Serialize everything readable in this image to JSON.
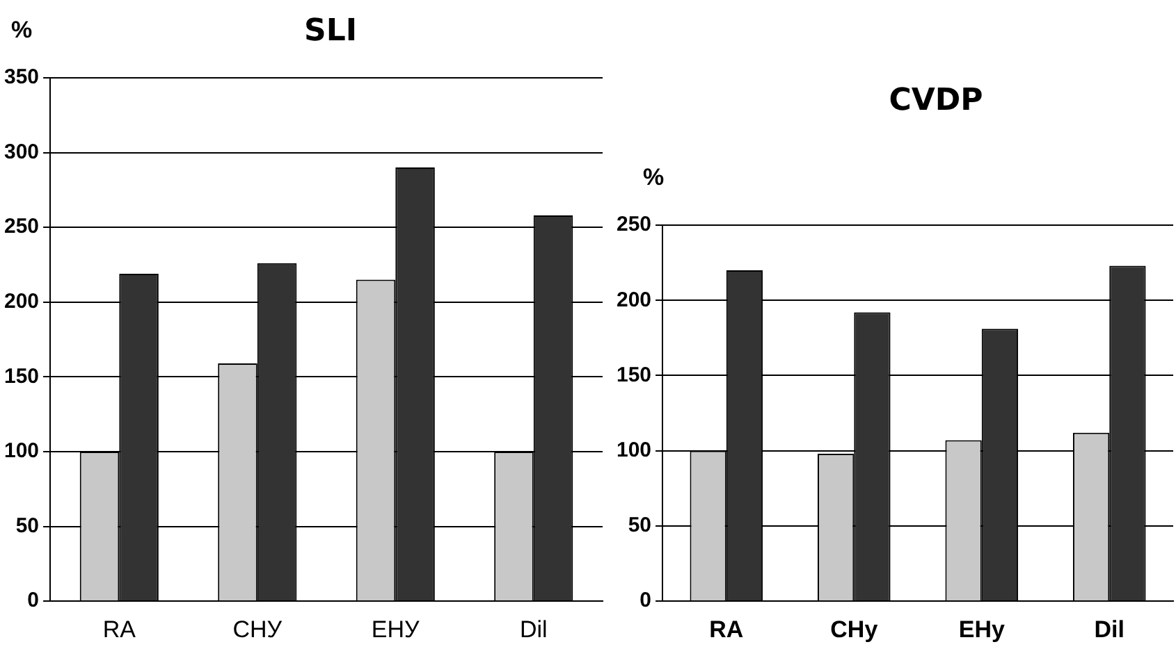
{
  "chart_data": [
    {
      "type": "bar",
      "title": "SLI",
      "ylabel": "%",
      "categories": [
        "RA",
        "CHУ",
        "EHУ",
        "Dil"
      ],
      "series": [
        {
          "color": "#c8c8c8",
          "values": [
            100,
            159,
            215,
            100
          ]
        },
        {
          "color": "#333333",
          "values": [
            219,
            226,
            290,
            258
          ]
        }
      ],
      "ylim": [
        0,
        350
      ],
      "yticks": [
        0,
        50,
        100,
        150,
        200,
        250,
        300,
        350
      ],
      "grid": "y",
      "legend": false
    },
    {
      "type": "bar",
      "title": "CVDP",
      "ylabel": "%",
      "categories": [
        "RA",
        "CHy",
        "EHy",
        "Dil"
      ],
      "series": [
        {
          "color": "#c8c8c8",
          "values": [
            100,
            98,
            107,
            112
          ]
        },
        {
          "color": "#333333",
          "values": [
            220,
            192,
            181,
            223
          ]
        }
      ],
      "ylim": [
        0,
        250
      ],
      "yticks": [
        0,
        50,
        100,
        150,
        200,
        250
      ],
      "grid": "y",
      "legend": false
    }
  ]
}
